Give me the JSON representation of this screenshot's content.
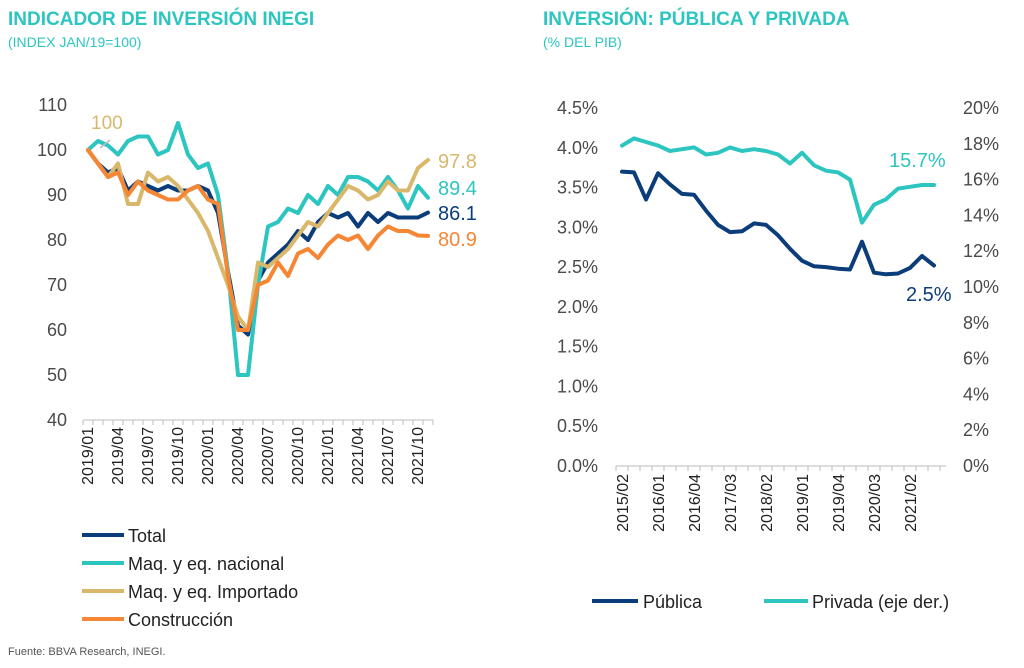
{
  "source": "Fuente: BBVA Research, INEGI.",
  "chart_data": [
    {
      "type": "line",
      "title": "INDICADOR DE INVERSIÓN INEGI",
      "subtitle": "(INDEX JAN/19=100)",
      "ylim": [
        40,
        110
      ],
      "yticks": [
        "110",
        "100",
        "90",
        "80",
        "70",
        "60",
        "50",
        "40"
      ],
      "xticks": [
        "2019/01",
        "2019/04",
        "2019/07",
        "2019/10",
        "2020/01",
        "2020/04",
        "2020/07",
        "2020/10",
        "2021/01",
        "2021/04",
        "2021/07",
        "2021/10"
      ],
      "start_annotation": "100",
      "series": [
        {
          "name": "Total",
          "color": "#0b3d7a",
          "end_label": "86.1",
          "values": [
            100,
            97,
            95,
            96,
            91,
            93,
            92,
            91,
            92,
            91,
            91,
            92,
            91,
            86,
            73,
            61,
            59,
            71,
            75,
            77,
            79,
            82,
            80,
            84,
            86,
            85,
            86,
            83,
            86,
            84,
            86,
            85,
            85,
            85,
            86.1
          ]
        },
        {
          "name": "Maq. y eq. nacional",
          "color": "#2dc5c0",
          "end_label": "89.4",
          "values": [
            100,
            102,
            101,
            99,
            102,
            103,
            103,
            99,
            100,
            106,
            99,
            96,
            97,
            90,
            73,
            50,
            50,
            70,
            83,
            84,
            87,
            86,
            90,
            88,
            92,
            90,
            94,
            94,
            93,
            91,
            94,
            91,
            87,
            92,
            89.4
          ]
        },
        {
          "name": "Maq. y eq. Importado",
          "color": "#d9b86c",
          "end_label": "97.8",
          "values": [
            100,
            97,
            94,
            97,
            88,
            88,
            95,
            93,
            94,
            92,
            89,
            86,
            82,
            76,
            70,
            63,
            60,
            75,
            74,
            76,
            78,
            81,
            84,
            83,
            86,
            89,
            92,
            91,
            89,
            90,
            93,
            91,
            91,
            96,
            97.8
          ]
        },
        {
          "name": "Construcción",
          "color": "#f58634",
          "end_label": "80.9",
          "values": [
            100,
            97,
            94,
            95,
            90,
            93,
            91,
            90,
            89,
            89,
            91,
            92,
            89,
            88,
            72,
            60,
            60,
            70,
            71,
            75,
            72,
            77,
            78,
            76,
            79,
            81,
            80,
            81,
            78,
            81,
            83,
            82,
            82,
            81,
            80.9
          ]
        }
      ]
    },
    {
      "type": "line",
      "title": "INVERSIÓN: PÚBLICA Y PRIVADA",
      "subtitle": "(% DEL PIB)",
      "ylim_left": [
        0,
        4.5
      ],
      "ylim_right": [
        0,
        20
      ],
      "yticks_left": [
        "4.5%",
        "4.0%",
        "3.5%",
        "3.0%",
        "2.5%",
        "2.0%",
        "1.5%",
        "1.0%",
        "0.5%",
        "0.0%"
      ],
      "yticks_right": [
        "20%",
        "18%",
        "16%",
        "14%",
        "12%",
        "10%",
        "8%",
        "6%",
        "4%",
        "2%",
        "0%"
      ],
      "xticks": [
        "2015/02",
        "2016/01",
        "2016/04",
        "2017/03",
        "2018/02",
        "2019/01",
        "2019/04",
        "2020/03",
        "2021/02"
      ],
      "series": [
        {
          "name": "Pública",
          "color": "#0b3d7a",
          "axis": "left",
          "end_label": "2.5%",
          "values": [
            3.7,
            3.69,
            3.35,
            3.68,
            3.54,
            3.42,
            3.41,
            3.21,
            3.03,
            2.94,
            2.95,
            3.05,
            3.03,
            2.9,
            2.73,
            2.58,
            2.51,
            2.5,
            2.48,
            2.47,
            2.82,
            2.43,
            2.41,
            2.42,
            2.49,
            2.64,
            2.52
          ]
        },
        {
          "name": "Privada (eje der.)",
          "color": "#2dc5c0",
          "axis": "right",
          "end_label": "15.7%",
          "values": [
            17.9,
            18.3,
            18.1,
            17.9,
            17.6,
            17.7,
            17.8,
            17.4,
            17.5,
            17.8,
            17.6,
            17.7,
            17.6,
            17.4,
            16.9,
            17.5,
            16.8,
            16.5,
            16.4,
            16.0,
            13.6,
            14.6,
            14.9,
            15.5,
            15.6,
            15.7,
            15.7
          ]
        }
      ]
    }
  ]
}
